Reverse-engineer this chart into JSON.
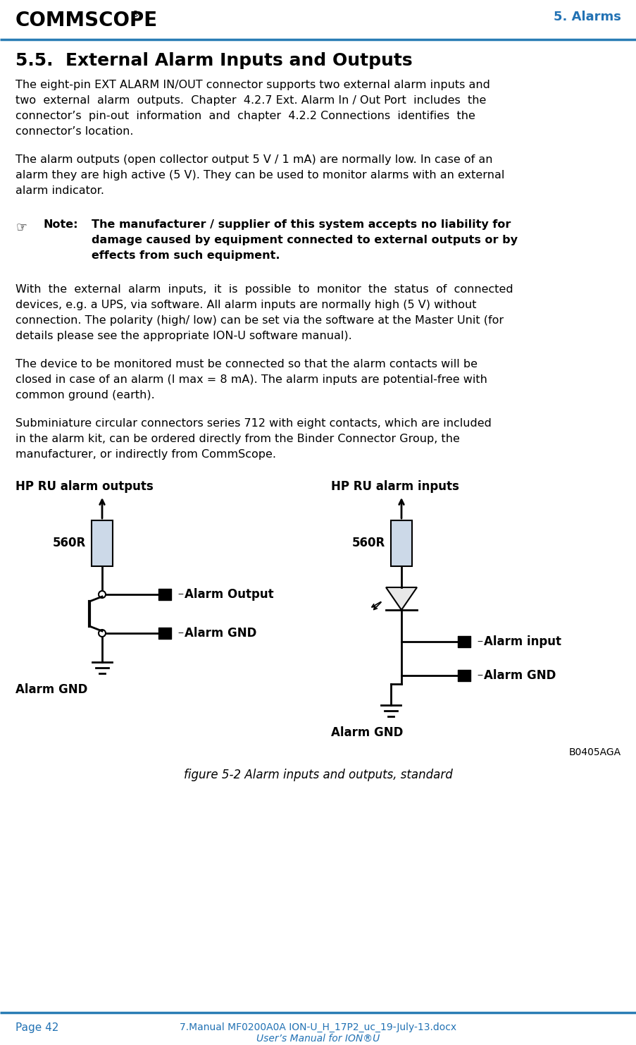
{
  "page_title": "5. Alarms",
  "page_number": "Page 42",
  "footer_text": "7.Manual MF0200A0A ION-U_H_17P2_uc_19-July-13.docx",
  "footer_text2": "User’s Manual for ION®U",
  "header_line_color": "#2a7db5",
  "blue_color": "#2272b4",
  "section_title": "5.5.  External Alarm Inputs and Outputs",
  "diagram_label_out": "HP RU alarm outputs",
  "diagram_label_in": "HP RU alarm inputs",
  "resistor_label": "560R",
  "alarm_output_label": "Alarm Output",
  "alarm_gnd_label1": "Alarm GND",
  "alarm_gnd_bottom1": "Alarm GND",
  "alarm_input_label": "Alarm input",
  "alarm_gnd_label2": "Alarm GND",
  "alarm_gnd_bottom2": "Alarm GND",
  "bcode": "B0405AGA",
  "fig_caption": "figure 5-2 Alarm inputs and outputs, standard",
  "bg_color": "#ffffff"
}
